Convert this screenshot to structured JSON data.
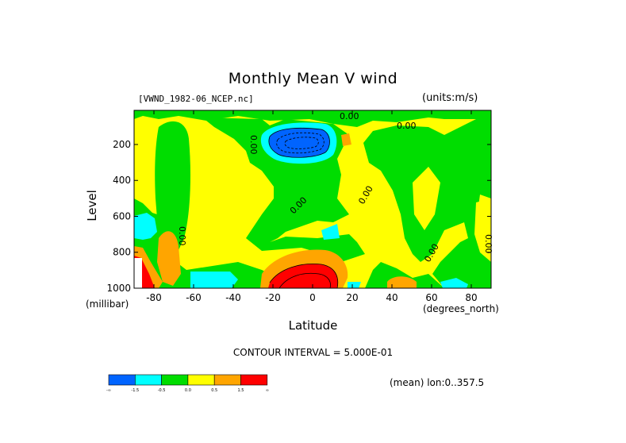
{
  "chart_data": {
    "type": "heatmap",
    "title": "Monthly Mean V wind",
    "dataset": "[VWND_1982-06_NCEP.nc]",
    "units": "(units:m/s)",
    "xlabel": "Latitude",
    "x_unit": "(degrees_north)",
    "ylabel": "Level",
    "y_unit": "(millibar)",
    "xlim": [
      -90,
      90
    ],
    "ylim": [
      1000,
      10
    ],
    "x_ticks": [
      "-80",
      "-60",
      "-40",
      "-20",
      "0",
      "20",
      "40",
      "60",
      "80"
    ],
    "x_tick_values": [
      -80,
      -60,
      -40,
      -20,
      0,
      20,
      40,
      60,
      80
    ],
    "y_ticks": [
      "200",
      "400",
      "600",
      "800",
      "1000"
    ],
    "y_tick_values": [
      200,
      400,
      600,
      800,
      1000
    ],
    "contour_interval_text": "CONTOUR INTERVAL = 5.000E-01",
    "contour_labels": [
      "0.00",
      "0.00",
      "0.00",
      "0.00",
      "0.00",
      "0.00",
      "0.00",
      "0.00"
    ],
    "average_text": "(mean) lon:0..357.5",
    "colorbar": {
      "colors": [
        "#0064ff",
        "#00ffff",
        "#00dd00",
        "#ffff00",
        "#ffa500",
        "#ff0000"
      ],
      "labels": [
        "-∞",
        "-1.5",
        "-0.5",
        "0.0",
        "0.5",
        "1.5",
        "∞"
      ]
    },
    "regions": [
      {
        "level": "strong negative",
        "color": "#0064ff",
        "lat_range": [
          -20,
          10
        ],
        "pressure_range": [
          150,
          250
        ]
      },
      {
        "level": "positive",
        "color": "#ffa500",
        "lat_range": [
          -30,
          15
        ],
        "pressure_range": [
          800,
          1000
        ]
      },
      {
        "level": "strong positive",
        "color": "#ff0000",
        "lat_range": [
          -25,
          10
        ],
        "pressure_range": [
          900,
          1000
        ]
      },
      {
        "level": "strong positive",
        "color": "#ff0000",
        "lat_range": [
          -90,
          -80
        ],
        "pressure_range": [
          800,
          1000
        ]
      }
    ]
  }
}
